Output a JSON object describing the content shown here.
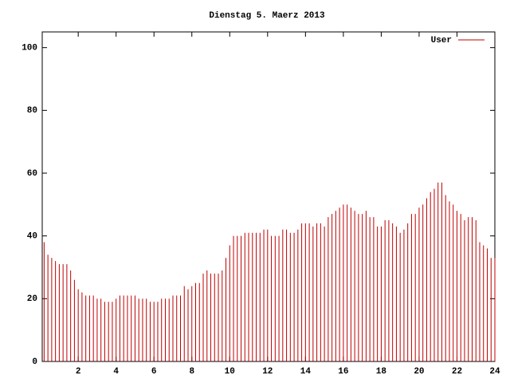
{
  "chart_data": {
    "type": "impulse",
    "title": "Dienstag 5. Maerz 2013",
    "x": [
      0.2,
      0.4,
      0.6,
      0.8,
      1.0,
      1.2,
      1.4,
      1.6,
      1.8,
      2.0,
      2.2,
      2.4,
      2.6,
      2.8,
      3.0,
      3.2,
      3.4,
      3.6,
      3.8,
      4.0,
      4.2,
      4.4,
      4.6,
      4.8,
      5.0,
      5.2,
      5.4,
      5.6,
      5.8,
      6.0,
      6.2,
      6.4,
      6.6,
      6.8,
      7.0,
      7.2,
      7.4,
      7.6,
      7.8,
      8.0,
      8.2,
      8.4,
      8.6,
      8.8,
      9.0,
      9.2,
      9.4,
      9.6,
      9.8,
      10.0,
      10.2,
      10.4,
      10.6,
      10.8,
      11.0,
      11.2,
      11.4,
      11.6,
      11.8,
      12.0,
      12.2,
      12.4,
      12.6,
      12.8,
      13.0,
      13.2,
      13.4,
      13.6,
      13.8,
      14.0,
      14.2,
      14.4,
      14.6,
      14.8,
      15.0,
      15.2,
      15.4,
      15.6,
      15.8,
      16.0,
      16.2,
      16.4,
      16.6,
      16.8,
      17.0,
      17.2,
      17.4,
      17.6,
      17.8,
      18.0,
      18.2,
      18.4,
      18.6,
      18.8,
      19.0,
      19.2,
      19.4,
      19.6,
      19.8,
      20.0,
      20.2,
      20.4,
      20.6,
      20.8,
      21.0,
      21.2,
      21.4,
      21.6,
      21.8,
      22.0,
      22.2,
      22.4,
      22.6,
      22.8,
      23.0,
      23.2,
      23.4,
      23.6,
      23.8,
      24.0
    ],
    "series": [
      {
        "name": "User",
        "color": "#c00000",
        "values": [
          38,
          34,
          33,
          32,
          31,
          31,
          31,
          29,
          26,
          23,
          22,
          21,
          21,
          21,
          20,
          20,
          19,
          19,
          19,
          20,
          21,
          21,
          21,
          21,
          21,
          20,
          20,
          20,
          19,
          19,
          19,
          20,
          20,
          20,
          21,
          21,
          21,
          24,
          23,
          24,
          25,
          25,
          28,
          29,
          28,
          28,
          28,
          29,
          33,
          37,
          40,
          40,
          40,
          41,
          41,
          41,
          41,
          41,
          42,
          42,
          40,
          40,
          40,
          42,
          42,
          41,
          41,
          42,
          44,
          44,
          44,
          43,
          44,
          44,
          43,
          46,
          47,
          48,
          49,
          50,
          50,
          49,
          48,
          47,
          47,
          48,
          46,
          46,
          43,
          43,
          45,
          45,
          44,
          43,
          41,
          42,
          44,
          47,
          47,
          49,
          50,
          52,
          54,
          55,
          57,
          57,
          53,
          51,
          50,
          48,
          47,
          45,
          46,
          46,
          45,
          38,
          37,
          36,
          33,
          33
        ]
      }
    ],
    "xlim": [
      0.1,
      24
    ],
    "xticks": [
      2,
      4,
      6,
      8,
      10,
      12,
      14,
      16,
      18,
      20,
      22,
      24
    ],
    "ylim": [
      0,
      105
    ],
    "yticks": [
      0,
      20,
      40,
      60,
      80,
      100
    ],
    "legend": "top-right"
  }
}
